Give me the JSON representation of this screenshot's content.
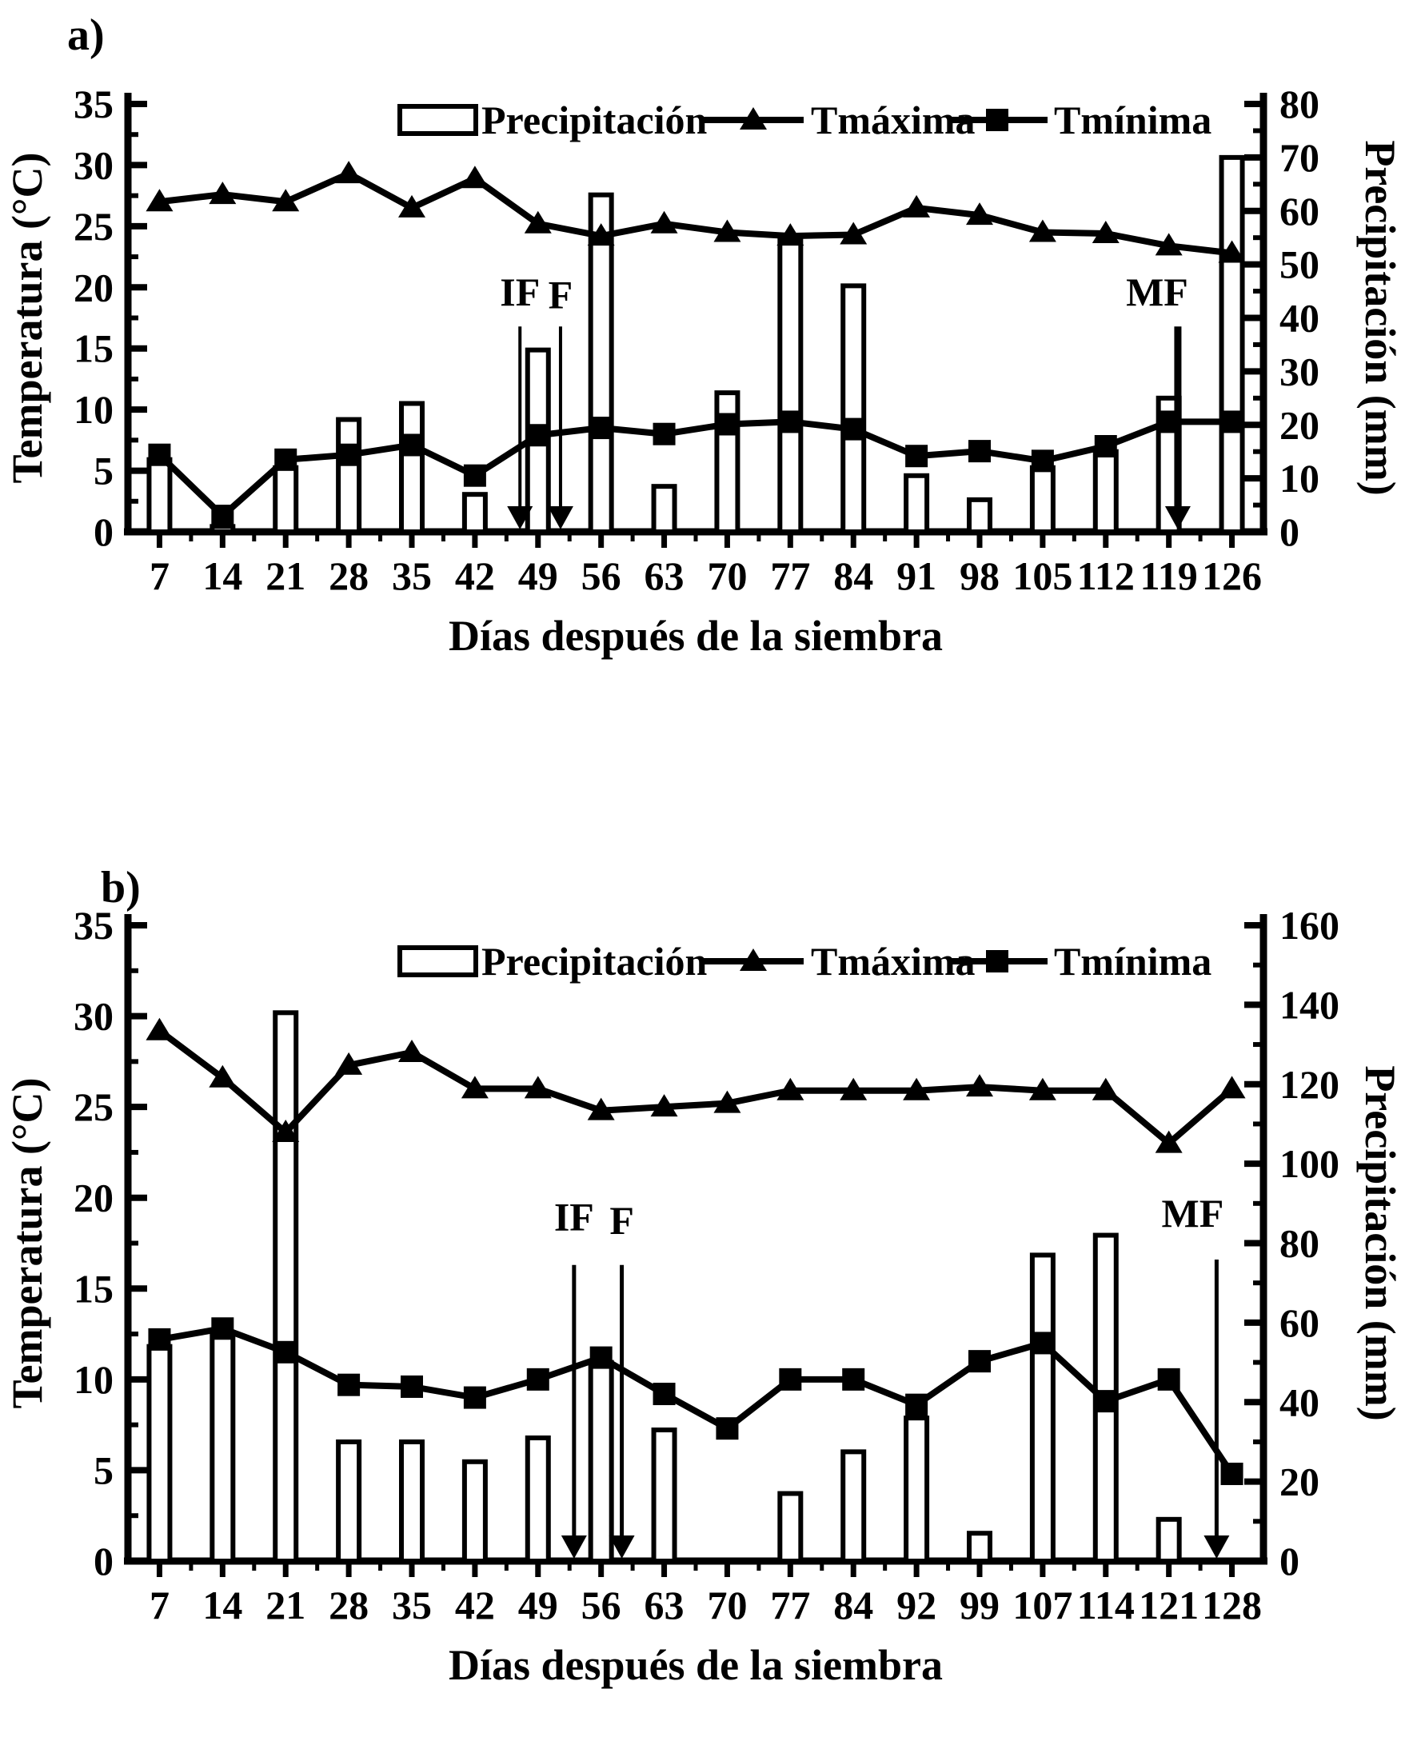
{
  "page": {
    "background": "#ffffff",
    "foreground": "#000000"
  },
  "chart_data": [
    {
      "panel": "a",
      "panel_label": "a)",
      "type": "bar+line",
      "x_label": "Días después de la siembra",
      "y_left": {
        "label": "Temperatura (°C)",
        "min": 0,
        "max": 35,
        "step": 5,
        "minor": 2.5
      },
      "y_right": {
        "label": "Precipitación (mm)",
        "min": 0,
        "max": 80,
        "step": 10,
        "minor": 5
      },
      "categories": [
        7,
        14,
        21,
        28,
        35,
        42,
        49,
        56,
        63,
        70,
        77,
        84,
        91,
        98,
        105,
        112,
        119,
        126
      ],
      "series": [
        {
          "name": "Precipitación",
          "type": "bar",
          "axis": "right",
          "marker": "rect",
          "values": [
            13.5,
            1,
            12,
            21,
            24,
            7,
            34,
            63,
            8.5,
            26,
            55,
            46,
            10.5,
            6,
            12,
            15,
            25,
            70
          ]
        },
        {
          "name": "Tmáxima",
          "type": "line",
          "axis": "left",
          "marker": "triangle",
          "values": [
            27,
            27.6,
            27,
            29.3,
            26.5,
            28.9,
            25.2,
            24.2,
            25.2,
            24.5,
            24.2,
            24.3,
            26.5,
            25.9,
            24.5,
            24.4,
            23.4,
            22.8
          ]
        },
        {
          "name": "Tmínima",
          "type": "line",
          "axis": "left",
          "marker": "square",
          "values": [
            6.3,
            1.3,
            5.9,
            6.3,
            7.1,
            4.6,
            7.9,
            8.5,
            8,
            8.8,
            9,
            8.4,
            6.2,
            6.6,
            5.8,
            7,
            9,
            9
          ]
        }
      ],
      "legend": [
        "Precipitación",
        "Tmáxima",
        "Tmínima"
      ],
      "annotations": [
        {
          "text": "IF",
          "day": 47,
          "top": 16.8,
          "label_temp": 18.5,
          "lw": 4,
          "dx": 0
        },
        {
          "text": "F",
          "day": 51.5,
          "top": 16.8,
          "label_temp": 18.3,
          "lw": 4,
          "dx": 0
        },
        {
          "text": "MF",
          "day": 120,
          "top": 16.8,
          "label_temp": 18.5,
          "lw": 9,
          "dx": -26
        }
      ]
    },
    {
      "panel": "b",
      "panel_label": "b)",
      "type": "bar+line",
      "x_label": "Días después de la siembra",
      "y_left": {
        "label": "Temperatura (°C)",
        "min": 0,
        "max": 35,
        "step": 5,
        "minor": 2.5
      },
      "y_right": {
        "label": "Precipitación (mm)",
        "min": 0,
        "max": 160,
        "step": 20,
        "minor": 10
      },
      "categories": [
        7,
        14,
        21,
        28,
        35,
        42,
        49,
        56,
        63,
        70,
        77,
        84,
        92,
        99,
        107,
        114,
        121,
        128
      ],
      "series": [
        {
          "name": "Precipitación",
          "type": "bar",
          "axis": "right",
          "marker": "rect",
          "values": [
            54,
            57,
            138,
            30,
            30,
            25,
            31,
            50,
            33,
            0,
            17,
            27.5,
            36,
            7,
            77,
            82,
            10.5,
            0
          ]
        },
        {
          "name": "Tmáxima",
          "type": "line",
          "axis": "left",
          "marker": "triangle",
          "values": [
            29.2,
            26.6,
            23.6,
            27.3,
            28,
            26,
            26,
            24.8,
            25,
            25.2,
            25.9,
            25.9,
            25.9,
            26.1,
            25.9,
            25.9,
            23,
            26
          ]
        },
        {
          "name": "Tmínima",
          "type": "line",
          "axis": "left",
          "marker": "square",
          "values": [
            12.2,
            12.8,
            11.5,
            9.7,
            9.6,
            9,
            10,
            11.2,
            9.2,
            7.3,
            10,
            10,
            8.6,
            11,
            12,
            8.8,
            10,
            4.8
          ]
        }
      ],
      "legend": [
        "Precipitación",
        "Tmáxima",
        "Tmínima"
      ],
      "annotations": [
        {
          "text": "IF",
          "day": 53,
          "top": 16.3,
          "label_temp": 18.2,
          "lw": 5,
          "dx": 0
        },
        {
          "text": "F",
          "day": 58.3,
          "top": 16.3,
          "label_temp": 18.0,
          "lw": 5,
          "dx": 0
        },
        {
          "text": "MF",
          "day": 126.3,
          "top": 16.6,
          "label_temp": 18.4,
          "lw": 5,
          "dx": -30
        }
      ]
    }
  ]
}
